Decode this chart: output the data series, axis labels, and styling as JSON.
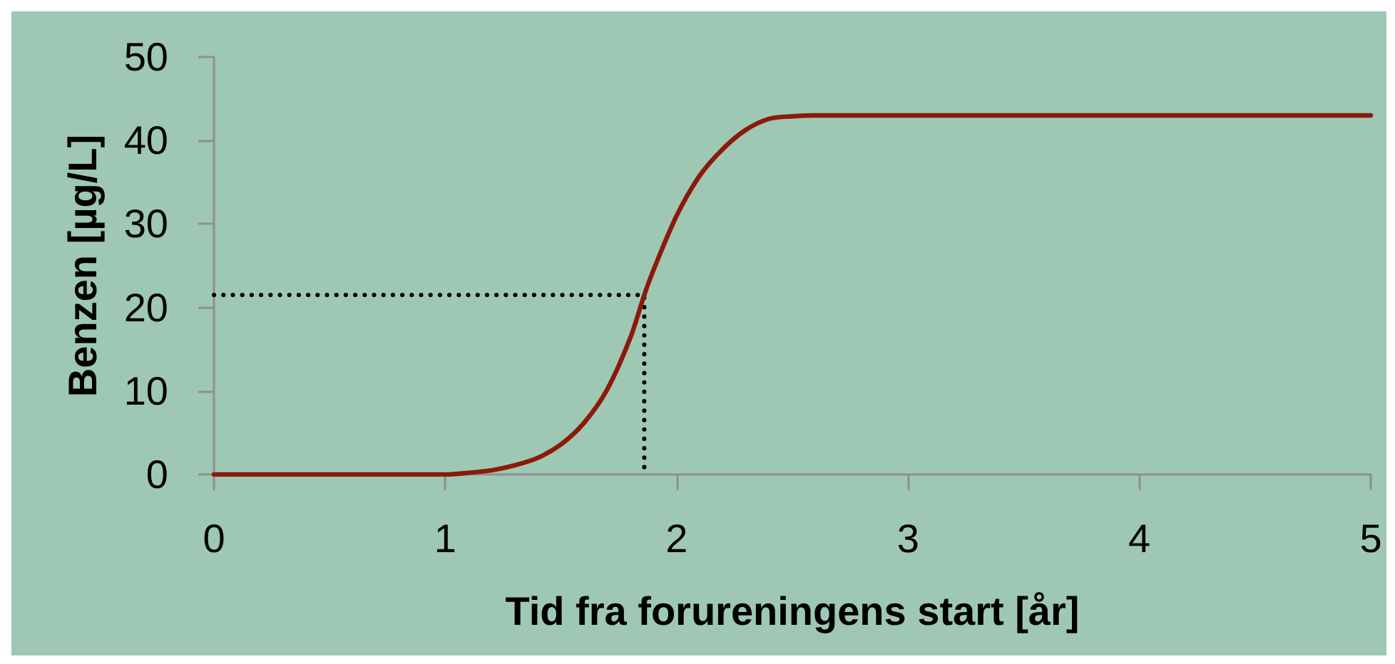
{
  "chart_data": {
    "type": "line",
    "xlabel": "Tid fra forureningens start [år]",
    "ylabel": "Benzen [µg/L]",
    "xlim": [
      0,
      5
    ],
    "xticks": [
      0,
      1,
      2,
      3,
      4,
      5
    ],
    "ylim": [
      0,
      50
    ],
    "yticks": [
      0,
      10,
      20,
      30,
      40,
      50
    ],
    "marker": "none",
    "line_style": "solid",
    "series": [
      {
        "color": "#8b1a0a",
        "x": [
          0,
          0.5,
          1,
          1.1,
          1.2,
          1.3,
          1.4,
          1.5,
          1.6,
          1.7,
          1.8,
          1.86,
          1.9,
          2.0,
          2.1,
          2.2,
          2.3,
          2.4,
          2.5,
          2.6,
          2.8,
          3,
          4,
          5
        ],
        "values": [
          0,
          0,
          0,
          0.2,
          0.5,
          1.1,
          2.0,
          3.6,
          6.2,
          10.2,
          16.4,
          21.5,
          24.5,
          31,
          35.8,
          39,
          41.3,
          42.6,
          42.9,
          43,
          43,
          43,
          43,
          43
        ]
      },
      {
        "color": "#000000",
        "line_style": "dotted",
        "x": [
          0,
          1.86,
          1.86
        ],
        "values": [
          21.5,
          21.5,
          0
        ]
      }
    ]
  }
}
